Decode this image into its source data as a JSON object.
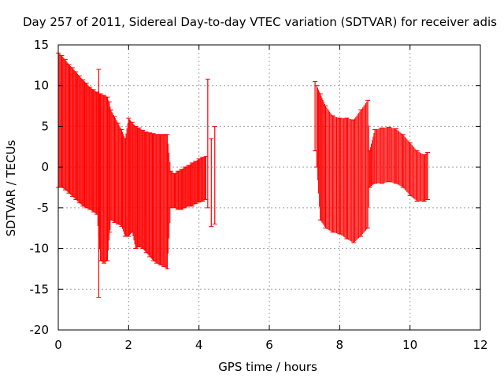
{
  "chart_data": {
    "type": "scatter",
    "title": "Day 257 of 2011, Sidereal Day-to-day VTEC variation (SDTVAR) for receiver adis",
    "xlabel": "GPS time / hours",
    "ylabel": "SDTVAR / TECUs",
    "xlim": [
      0,
      12
    ],
    "ylim": [
      -20,
      15
    ],
    "x_ticks": [
      0,
      2,
      4,
      6,
      8,
      10,
      12
    ],
    "x_tick_labels": [
      "0",
      "2",
      "4",
      "6",
      "8",
      "10",
      "12"
    ],
    "y_ticks": [
      -20,
      -15,
      -10,
      -5,
      0,
      5,
      10,
      15
    ],
    "y_tick_labels": [
      "-20",
      "-15",
      "-10",
      "-5",
      "0",
      "5",
      "10",
      "15"
    ],
    "grid": true,
    "grid_style": "dotted",
    "series_color": "#ff0000",
    "series": [
      {
        "style": "error-bands",
        "points": [
          {
            "x": 0.0,
            "low": -2.5,
            "high": 14.0
          },
          {
            "x": 0.1,
            "low": -2.5,
            "high": 13.7
          },
          {
            "x": 0.2,
            "low": -2.8,
            "high": 13.2
          },
          {
            "x": 0.3,
            "low": -3.2,
            "high": 12.6
          },
          {
            "x": 0.4,
            "low": -3.6,
            "high": 12.2
          },
          {
            "x": 0.5,
            "low": -4.0,
            "high": 11.7
          },
          {
            "x": 0.6,
            "low": -4.4,
            "high": 11.2
          },
          {
            "x": 0.7,
            "low": -4.8,
            "high": 10.7
          },
          {
            "x": 0.8,
            "low": -5.0,
            "high": 10.3
          },
          {
            "x": 0.9,
            "low": -5.2,
            "high": 9.8
          },
          {
            "x": 1.0,
            "low": -5.5,
            "high": 9.5
          },
          {
            "x": 1.1,
            "low": -5.8,
            "high": 9.2
          },
          {
            "x": 1.2,
            "low": -11.5,
            "high": 9.0
          },
          {
            "x": 1.3,
            "low": -11.8,
            "high": 8.8
          },
          {
            "x": 1.4,
            "low": -11.5,
            "high": 8.6
          },
          {
            "x": 1.5,
            "low": -6.5,
            "high": 7.0
          },
          {
            "x": 1.6,
            "low": -6.8,
            "high": 6.2
          },
          {
            "x": 1.7,
            "low": -7.0,
            "high": 5.4
          },
          {
            "x": 1.8,
            "low": -7.3,
            "high": 4.6
          },
          {
            "x": 1.9,
            "low": -8.5,
            "high": 3.5
          },
          {
            "x": 2.0,
            "low": -8.5,
            "high": 6.0
          },
          {
            "x": 2.1,
            "low": -8.0,
            "high": 5.5
          },
          {
            "x": 2.2,
            "low": -10.0,
            "high": 5.0
          },
          {
            "x": 2.3,
            "low": -9.8,
            "high": 4.8
          },
          {
            "x": 2.4,
            "low": -10.0,
            "high": 4.5
          },
          {
            "x": 2.5,
            "low": -10.5,
            "high": 4.3
          },
          {
            "x": 2.6,
            "low": -11.0,
            "high": 4.2
          },
          {
            "x": 2.7,
            "low": -11.5,
            "high": 4.1
          },
          {
            "x": 2.8,
            "low": -11.8,
            "high": 4.0
          },
          {
            "x": 2.9,
            "low": -12.0,
            "high": 4.0
          },
          {
            "x": 3.0,
            "low": -12.2,
            "high": 4.0
          },
          {
            "x": 3.1,
            "low": -12.5,
            "high": 4.0
          },
          {
            "x": 3.2,
            "low": -5.0,
            "high": -0.5
          },
          {
            "x": 3.3,
            "low": -5.0,
            "high": -0.8
          },
          {
            "x": 3.4,
            "low": -5.2,
            "high": -0.5
          },
          {
            "x": 3.5,
            "low": -5.2,
            "high": -0.3
          },
          {
            "x": 3.6,
            "low": -5.0,
            "high": 0.0
          },
          {
            "x": 3.7,
            "low": -4.8,
            "high": 0.2
          },
          {
            "x": 3.8,
            "low": -4.8,
            "high": 0.5
          },
          {
            "x": 3.9,
            "low": -4.5,
            "high": 0.7
          },
          {
            "x": 4.0,
            "low": -4.3,
            "high": 1.0
          },
          {
            "x": 4.1,
            "low": -4.2,
            "high": 1.2
          },
          {
            "x": 4.2,
            "low": -4.0,
            "high": 1.3
          },
          {
            "x": 7.35,
            "low": 0.0,
            "high": 10.0
          },
          {
            "x": 7.45,
            "low": -6.5,
            "high": 9.0
          },
          {
            "x": 7.6,
            "low": -7.5,
            "high": 7.5
          },
          {
            "x": 7.8,
            "low": -8.0,
            "high": 6.3
          },
          {
            "x": 8.0,
            "low": -8.2,
            "high": 6.0
          },
          {
            "x": 8.2,
            "low": -8.8,
            "high": 6.0
          },
          {
            "x": 8.4,
            "low": -9.3,
            "high": 5.8
          },
          {
            "x": 8.6,
            "low": -8.5,
            "high": 7.0
          },
          {
            "x": 8.8,
            "low": -7.5,
            "high": 8.2
          },
          {
            "x": 8.85,
            "low": -2.5,
            "high": 2.0
          },
          {
            "x": 9.0,
            "low": -2.0,
            "high": 4.6
          },
          {
            "x": 9.2,
            "low": -2.0,
            "high": 4.8
          },
          {
            "x": 9.4,
            "low": -1.8,
            "high": 4.9
          },
          {
            "x": 9.6,
            "low": -2.0,
            "high": 4.7
          },
          {
            "x": 9.8,
            "low": -2.5,
            "high": 4.0
          },
          {
            "x": 10.0,
            "low": -3.5,
            "high": 3.0
          },
          {
            "x": 10.2,
            "low": -4.2,
            "high": 2.0
          },
          {
            "x": 10.4,
            "low": -4.2,
            "high": 1.5
          },
          {
            "x": 10.5,
            "low": -4.0,
            "high": 1.8
          }
        ],
        "spikes": [
          {
            "x": 1.15,
            "low": -16.0,
            "high": 12.0
          },
          {
            "x": 1.45,
            "low": -8.0,
            "high": 8.0
          },
          {
            "x": 4.25,
            "low": -5.0,
            "high": 10.8
          },
          {
            "x": 4.35,
            "low": -7.3,
            "high": 3.5
          },
          {
            "x": 4.45,
            "low": -7.0,
            "high": 5.0
          },
          {
            "x": 7.3,
            "low": 2.0,
            "high": 10.5
          }
        ]
      }
    ]
  }
}
